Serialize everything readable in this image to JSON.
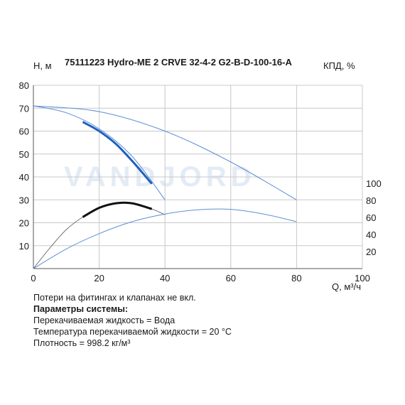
{
  "colors": {
    "head_curve": "#1f5fbf",
    "thin_curve": "#5b8fd6",
    "power_curve": "#111111",
    "grid": "#c8c8c8",
    "watermark": "#e3ebf5"
  },
  "watermark_text": "VANDJORD",
  "chart_data": {
    "type": "line",
    "title": "75111223 Hydro-ME 2 CRVE 32-4-2 G2-B-D-100-16-A",
    "xlabel": "Q, м³/ч",
    "ylabel": "H, м",
    "y2label": "КПД, %",
    "xlim": [
      0,
      100
    ],
    "ylim": [
      0,
      80
    ],
    "y2lim": [
      0,
      120
    ],
    "xticks": [
      "0",
      "20",
      "40",
      "60",
      "80",
      "100"
    ],
    "yticks": [
      "10",
      "20",
      "30",
      "40",
      "50",
      "60",
      "70",
      "80"
    ],
    "y2ticks": [
      "20",
      "40",
      "60",
      "80",
      "100"
    ],
    "grid": true,
    "series": [
      {
        "axis": "left",
        "style": "thin-blue",
        "x": [
          0,
          10,
          20,
          30,
          40
        ],
        "y": [
          71,
          68,
          61,
          49,
          30
        ]
      },
      {
        "axis": "left",
        "style": "thick-blue",
        "x": [
          15,
          20,
          25,
          30,
          36
        ],
        "y": [
          64,
          60,
          54.5,
          47,
          37
        ]
      },
      {
        "axis": "left",
        "style": "thin-blue",
        "x": [
          0,
          20,
          40,
          60,
          80
        ],
        "y": [
          71,
          68.5,
          60,
          46.5,
          30
        ]
      },
      {
        "axis": "left",
        "style": "thin-black",
        "x": [
          0,
          5,
          10,
          15,
          20,
          25,
          30,
          36,
          40
        ],
        "y": [
          0,
          9,
          17,
          22.5,
          26.5,
          28.5,
          28.5,
          26,
          23.5
        ]
      },
      {
        "axis": "left",
        "style": "thick-black",
        "x": [
          15,
          20,
          25,
          30,
          36
        ],
        "y": [
          22.5,
          26.5,
          28.5,
          28.5,
          26
        ]
      },
      {
        "axis": "right",
        "style": "thin-blue",
        "x": [
          0,
          10,
          20,
          30,
          40,
          50,
          60,
          70,
          80
        ],
        "y": [
          0,
          23,
          41,
          55,
          64,
          69,
          69.5,
          64,
          55
        ]
      }
    ]
  },
  "notes": {
    "line1": "Потери на фитингах и клапанах не вкл.",
    "heading": "Параметры системы:",
    "line2": "Перекачиваемая жидкость = Вода",
    "line3": "Температура перекачиваемой жидкости = 20 °C",
    "line4": "Плотность = 998.2 кг/м³"
  }
}
